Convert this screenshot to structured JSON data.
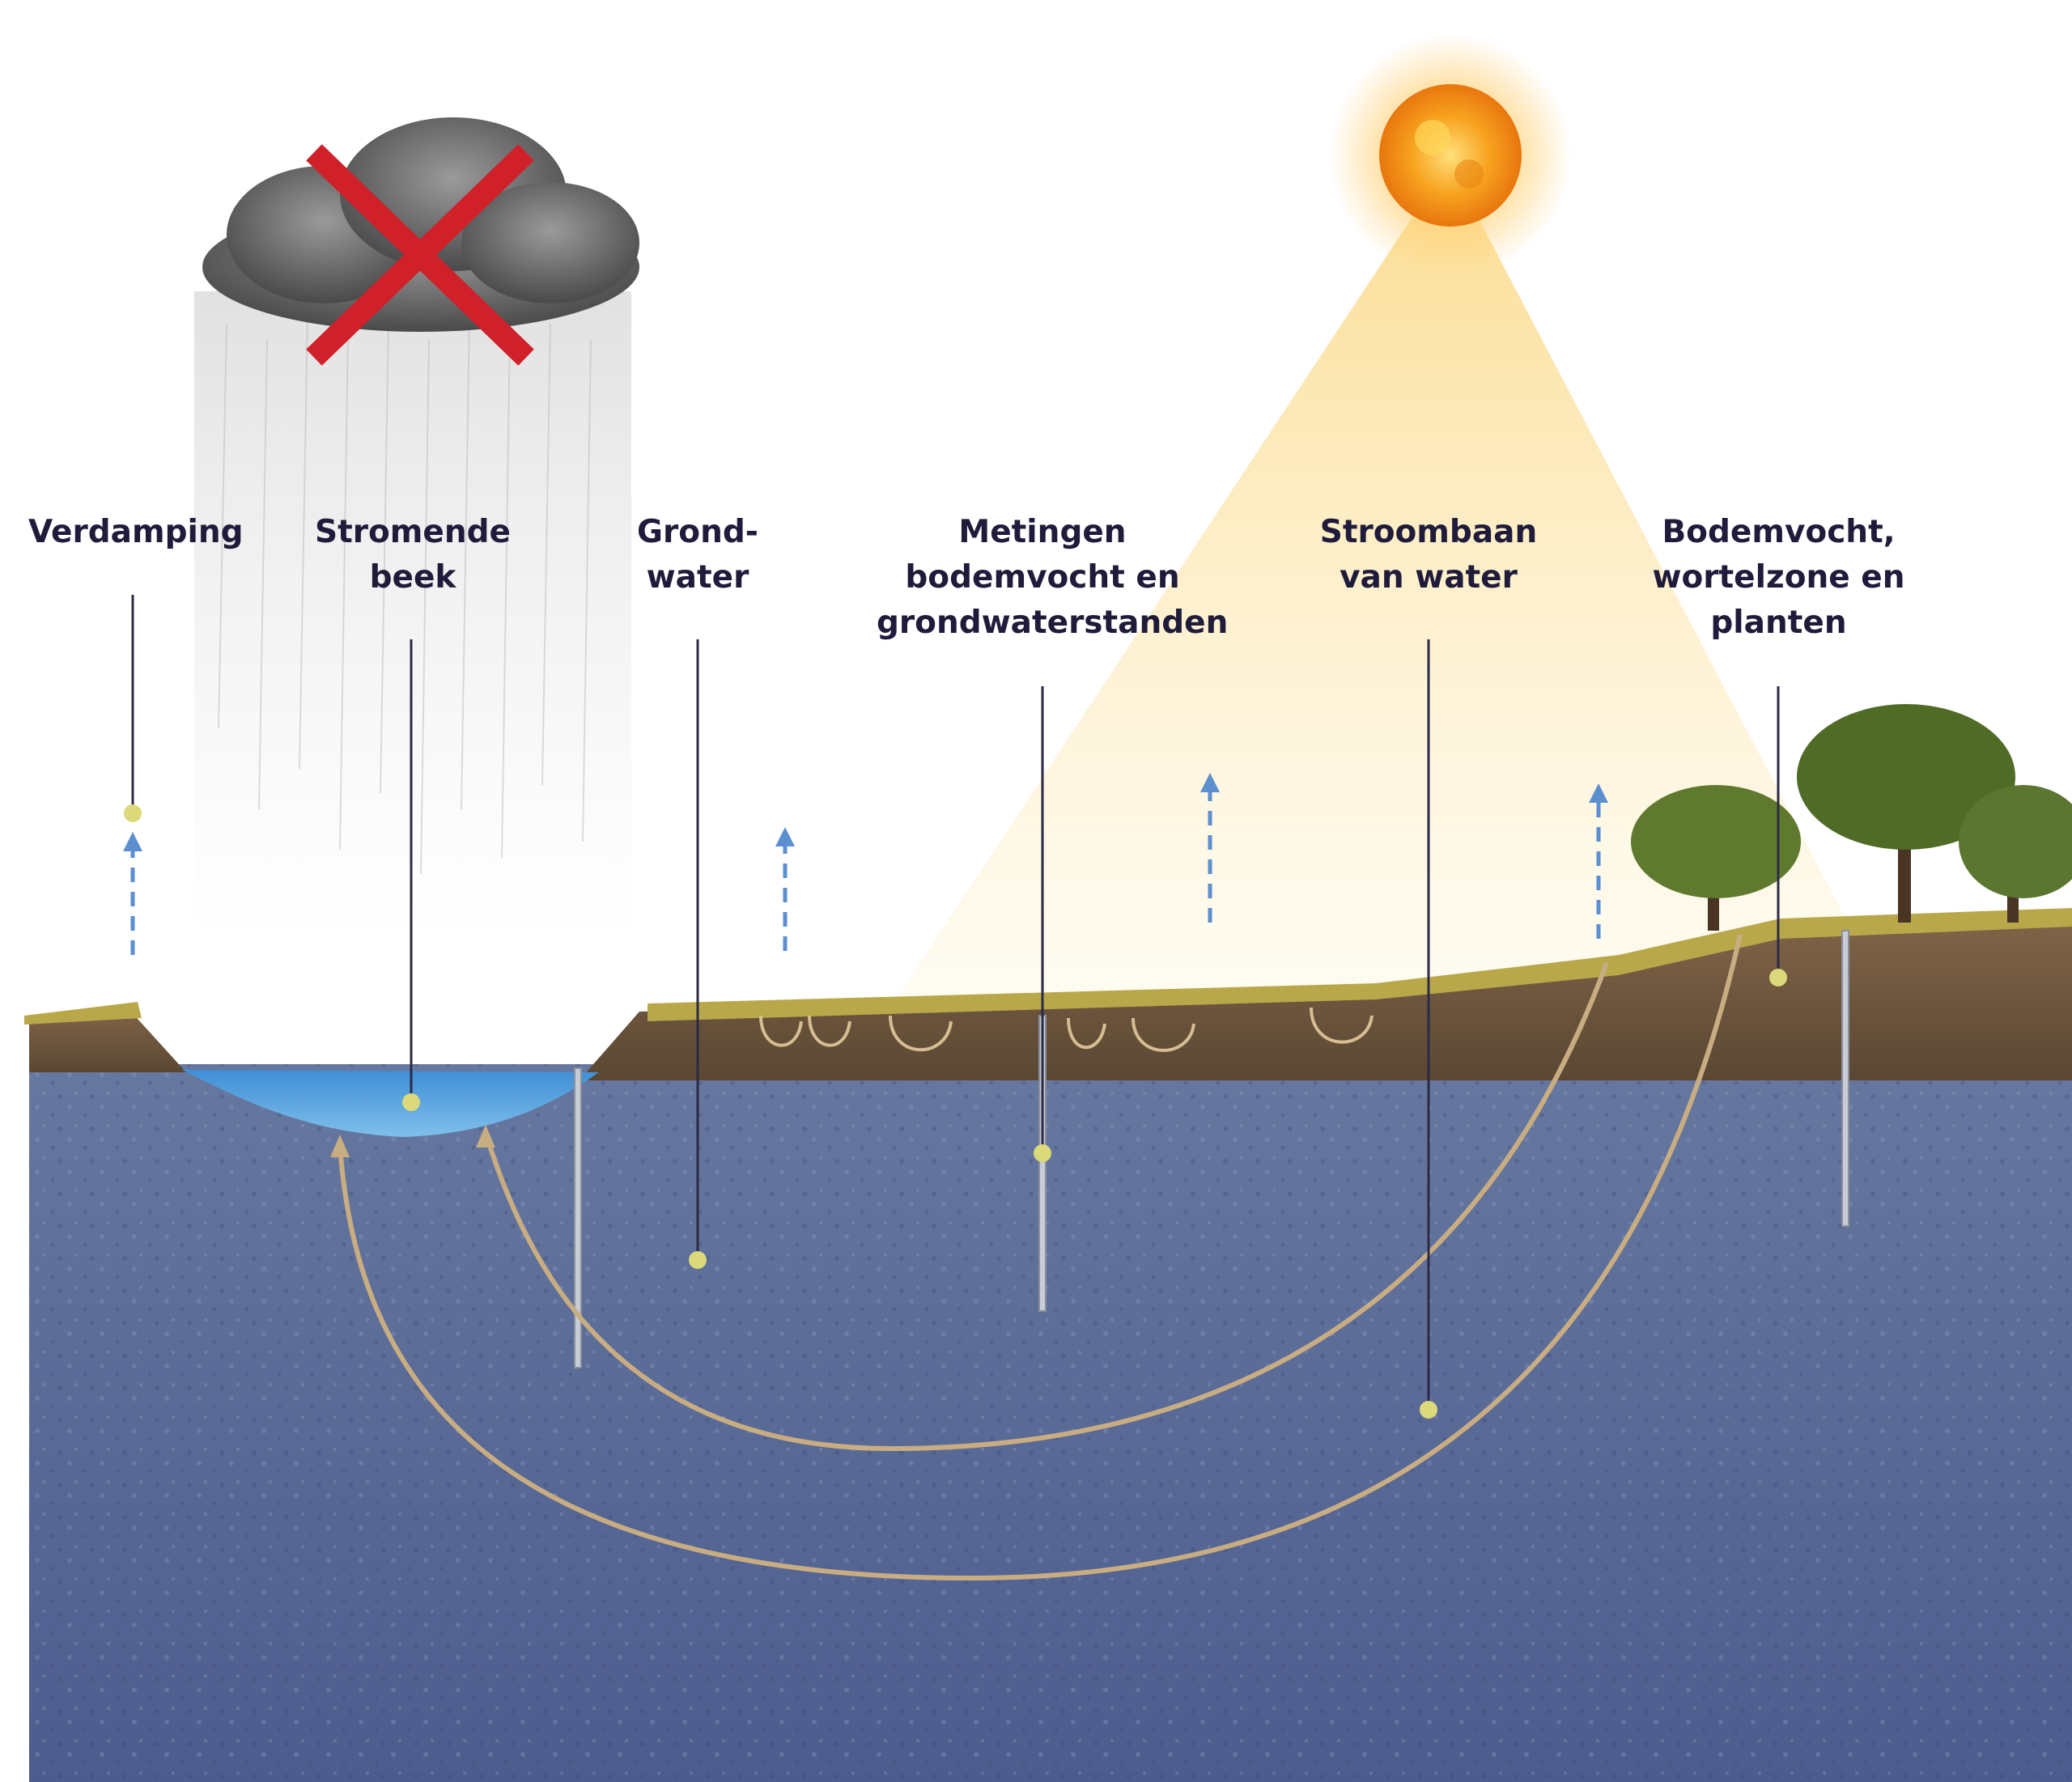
{
  "colors": {
    "label_text": "#1f1b3a",
    "leader_line": "#2b2a45",
    "marker_dot": "#dcd97a",
    "groundwater": "#5a72a8",
    "soil": "#6e5840",
    "stream": "#4a9bdc",
    "flow_arrow": "#c9ad82",
    "evaporation_arrow": "#5b8fcf",
    "no_rain_cross": "#d0202a",
    "sun": "#f5a623"
  },
  "icons": [
    "rain-cloud-icon",
    "no-rain-cross-icon",
    "sun-icon",
    "tree-icon",
    "grass-icon"
  ],
  "labels": [
    {
      "name": "verdamping",
      "lines": [
        "Verdamping"
      ]
    },
    {
      "name": "stromende-beek",
      "lines": [
        "Stromende",
        "beek"
      ]
    },
    {
      "name": "grondwater",
      "lines": [
        "Grond-",
        "water"
      ]
    },
    {
      "name": "metingen",
      "lines": [
        "Metingen",
        "bodemvocht en",
        "grondwaterstanden"
      ]
    },
    {
      "name": "stroombaan",
      "lines": [
        "Stroombaan",
        "van water"
      ]
    },
    {
      "name": "bodemvocht",
      "lines": [
        "Bodemvocht,",
        "wortelzone en",
        "planten"
      ]
    }
  ]
}
